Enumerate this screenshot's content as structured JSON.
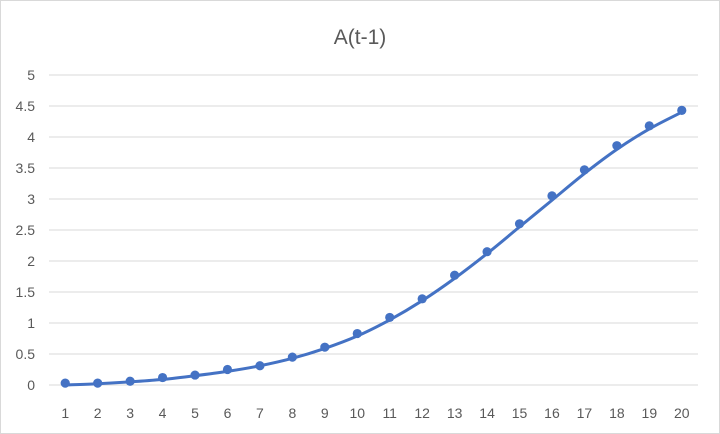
{
  "chart_data": {
    "type": "line",
    "title": "A(t-1)",
    "xlabel": "",
    "ylabel": "",
    "x": [
      1,
      2,
      3,
      4,
      5,
      6,
      7,
      8,
      9,
      10,
      11,
      12,
      13,
      14,
      15,
      16,
      17,
      18,
      19,
      20
    ],
    "x_tick_labels": [
      "1",
      "2",
      "3",
      "4",
      "5",
      "6",
      "7",
      "8",
      "9",
      "10",
      "11",
      "12",
      "13",
      "14",
      "15",
      "16",
      "17",
      "18",
      "19",
      "20"
    ],
    "ylim": [
      0,
      5
    ],
    "y_ticks": [
      0,
      0.5,
      1,
      1.5,
      2,
      2.5,
      3,
      3.5,
      4,
      4.5,
      5
    ],
    "y_tick_labels": [
      "0",
      "0.5",
      "1",
      "1.5",
      "2",
      "2.5",
      "3",
      "3.5",
      "4",
      "4.5",
      "5"
    ],
    "grid": true,
    "legend": "none",
    "series": [
      {
        "kind": "scatter",
        "color": "#4472c4",
        "values": [
          0.03,
          0.03,
          0.06,
          0.12,
          0.16,
          0.25,
          0.31,
          0.45,
          0.61,
          0.83,
          1.09,
          1.39,
          1.77,
          2.15,
          2.6,
          3.05,
          3.47,
          3.86,
          4.18,
          4.43
        ]
      },
      {
        "kind": "line",
        "color": "#4472c4",
        "values": [
          0.0,
          0.02,
          0.05,
          0.09,
          0.15,
          0.22,
          0.31,
          0.43,
          0.59,
          0.79,
          1.05,
          1.36,
          1.72,
          2.12,
          2.55,
          2.98,
          3.41,
          3.8,
          4.13,
          4.4
        ]
      }
    ]
  }
}
